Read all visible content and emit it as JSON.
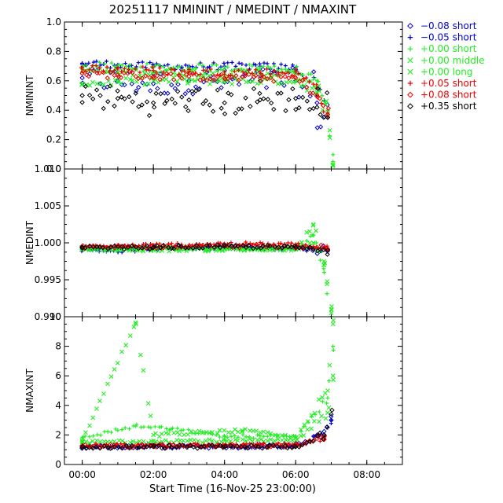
{
  "title": "20251117  NMININT  /  NMEDINT  /  NMAXINT",
  "xlabel": "Start Time (16-Nov-25 23:00:00)",
  "x_ticks": [
    "00:00",
    "02:00",
    "04:00",
    "06:00",
    "08:00"
  ],
  "legend": [
    {
      "symbol": "diamond",
      "color": "#0000cc",
      "offset": "−0.08",
      "type": "short"
    },
    {
      "symbol": "plus",
      "color": "#0000cc",
      "offset": "−0.05",
      "type": "short"
    },
    {
      "symbol": "plus",
      "color": "#22ee22",
      "offset": "+0.00",
      "type": "short"
    },
    {
      "symbol": "cross",
      "color": "#22ee22",
      "offset": "+0.00",
      "type": "middle"
    },
    {
      "symbol": "cross",
      "color": "#22ee22",
      "offset": "+0.00",
      "type": "long"
    },
    {
      "symbol": "plus",
      "color": "#ee0000",
      "offset": "+0.05",
      "type": "short"
    },
    {
      "symbol": "diamond",
      "color": "#ee0000",
      "offset": "+0.08",
      "type": "short"
    },
    {
      "symbol": "diamond",
      "color": "#000000",
      "offset": "+0.35",
      "type": "short"
    }
  ],
  "chart_data": [
    {
      "type": "scatter",
      "ylabel": "NMININT",
      "xlim": [
        -0.5,
        9.0
      ],
      "ylim": [
        0.0,
        1.0
      ],
      "y_ticks": [
        "0.0",
        "0.2",
        "0.4",
        "0.6",
        "0.8",
        "1.0"
      ],
      "series": [
        {
          "name": "−0.08 short",
          "x": [
            0.0,
            1.0,
            2.0,
            3.0,
            4.0,
            5.0,
            6.0,
            6.6,
            6.9
          ],
          "y": [
            0.62,
            0.6,
            0.58,
            0.6,
            0.59,
            0.6,
            0.6,
            0.45,
            0.35
          ]
        },
        {
          "name": "−0.05 short",
          "x": [
            0.0,
            1.0,
            2.0,
            3.0,
            4.0,
            5.0,
            6.0,
            6.6,
            6.9
          ],
          "y": [
            0.72,
            0.71,
            0.7,
            0.7,
            0.7,
            0.7,
            0.69,
            0.55,
            0.4
          ]
        },
        {
          "name": "+0.00 short",
          "x": [
            0.0,
            1.0,
            2.0,
            3.0,
            4.0,
            5.0,
            6.0,
            6.6,
            6.9,
            7.05
          ],
          "y": [
            0.7,
            0.7,
            0.69,
            0.69,
            0.69,
            0.69,
            0.68,
            0.6,
            0.4,
            0.05
          ]
        },
        {
          "name": "+0.00 middle",
          "x": [
            0.0,
            1.0,
            2.0,
            3.0,
            4.0,
            5.0,
            6.0,
            6.6,
            6.9,
            7.05
          ],
          "y": [
            0.67,
            0.66,
            0.66,
            0.66,
            0.65,
            0.65,
            0.65,
            0.55,
            0.38,
            0.03
          ]
        },
        {
          "name": "+0.00 long",
          "x": [
            0.0,
            1.0,
            2.0,
            3.0,
            4.0,
            5.0,
            6.0,
            6.6,
            6.9,
            7.05
          ],
          "y": [
            0.58,
            0.59,
            0.6,
            0.6,
            0.6,
            0.6,
            0.6,
            0.52,
            0.36,
            0.02
          ]
        },
        {
          "name": "+0.05 short",
          "x": [
            0.0,
            1.0,
            2.0,
            3.0,
            4.0,
            5.0,
            6.0,
            6.6,
            6.9
          ],
          "y": [
            0.69,
            0.68,
            0.67,
            0.66,
            0.66,
            0.66,
            0.66,
            0.55,
            0.38
          ]
        },
        {
          "name": "+0.08 short",
          "x": [
            0.0,
            1.0,
            2.0,
            3.0,
            4.0,
            5.0,
            6.0,
            6.6,
            6.9
          ],
          "y": [
            0.65,
            0.64,
            0.63,
            0.63,
            0.62,
            0.62,
            0.62,
            0.5,
            0.37
          ]
        },
        {
          "name": "+0.35 short",
          "x": [
            0.0,
            1.0,
            2.0,
            3.0,
            4.0,
            5.0,
            6.0,
            6.6,
            6.9
          ],
          "y": [
            0.5,
            0.48,
            0.45,
            0.47,
            0.45,
            0.47,
            0.48,
            0.42,
            0.35
          ]
        }
      ]
    },
    {
      "type": "scatter",
      "ylabel": "NMEDINT",
      "xlim": [
        -0.5,
        9.0
      ],
      "ylim": [
        0.99,
        1.01
      ],
      "y_ticks": [
        "0.990",
        "0.995",
        "1.000",
        "1.005",
        "1.010"
      ],
      "series": [
        {
          "name": "−0.08 short",
          "x": [
            0.0,
            2.0,
            4.0,
            6.0,
            6.9
          ],
          "y": [
            0.9993,
            0.9994,
            0.9995,
            0.9994,
            0.999
          ]
        },
        {
          "name": "−0.05 short",
          "x": [
            0.0,
            1.0,
            2.0,
            4.0,
            6.0,
            6.9
          ],
          "y": [
            0.9991,
            0.9989,
            0.9992,
            0.9993,
            0.9993,
            0.9988
          ]
        },
        {
          "name": "+0.00 short",
          "x": [
            0.0,
            2.0,
            4.0,
            6.0,
            6.5,
            6.8,
            7.0
          ],
          "y": [
            0.9993,
            0.9993,
            0.9993,
            0.9993,
            1.001,
            0.996,
            0.99
          ]
        },
        {
          "name": "+0.00 middle",
          "x": [
            0.0,
            2.0,
            4.0,
            6.0,
            6.5,
            6.8,
            7.0
          ],
          "y": [
            0.9992,
            0.9992,
            0.9992,
            0.9992,
            1.0025,
            0.997,
            0.991
          ]
        },
        {
          "name": "+0.00 long",
          "x": [
            0.0,
            2.0,
            4.0,
            6.0,
            6.5,
            6.8,
            7.0
          ],
          "y": [
            0.9991,
            0.9991,
            0.9991,
            0.9991,
            1.0,
            0.9975,
            0.9905
          ]
        },
        {
          "name": "+0.05 short",
          "x": [
            0.0,
            2.0,
            4.0,
            6.0,
            6.9
          ],
          "y": [
            0.9995,
            0.9997,
            0.9999,
            0.9998,
            0.9992
          ]
        },
        {
          "name": "+0.08 short",
          "x": [
            0.0,
            2.0,
            4.0,
            6.0,
            6.9
          ],
          "y": [
            0.9994,
            0.9995,
            0.9996,
            0.9995,
            0.9991
          ]
        },
        {
          "name": "+0.35 short",
          "x": [
            0.0,
            2.0,
            4.0,
            6.0,
            6.9
          ],
          "y": [
            0.9993,
            0.9994,
            0.9995,
            0.9994,
            0.999
          ]
        }
      ]
    },
    {
      "type": "scatter",
      "ylabel": "NMAXINT",
      "xlim": [
        -0.5,
        9.0
      ],
      "ylim": [
        0,
        10
      ],
      "y_ticks": [
        "0",
        "2",
        "4",
        "6",
        "8",
        "10"
      ],
      "series": [
        {
          "name": "−0.08 short",
          "x": [
            0.0,
            2.0,
            4.0,
            6.0,
            6.8,
            7.0
          ],
          "y": [
            1.2,
            1.25,
            1.2,
            1.3,
            2.0,
            3.0
          ]
        },
        {
          "name": "−0.05 short",
          "x": [
            0.0,
            2.0,
            4.0,
            6.0,
            6.8,
            7.0
          ],
          "y": [
            1.2,
            1.2,
            1.2,
            1.25,
            1.9,
            3.0
          ]
        },
        {
          "name": "+0.00 short",
          "x": [
            0.0,
            1.5,
            2.5,
            4.0,
            6.0,
            6.9,
            7.05
          ],
          "y": [
            1.8,
            2.6,
            2.4,
            1.9,
            1.9,
            4.5,
            8.0
          ]
        },
        {
          "name": "+0.00 middle",
          "x": [
            0.0,
            1.5,
            2.0,
            4.5,
            6.0,
            6.9,
            7.05
          ],
          "y": [
            1.6,
            9.6,
            2.0,
            2.3,
            1.8,
            5.0,
            9.5
          ]
        },
        {
          "name": "+0.00 long",
          "x": [
            0.0,
            2.0,
            4.0,
            6.0,
            6.9,
            7.05
          ],
          "y": [
            1.5,
            1.6,
            1.6,
            1.6,
            3.5,
            6.0
          ]
        },
        {
          "name": "+0.05 short",
          "x": [
            0.0,
            2.0,
            4.0,
            6.0,
            6.8
          ],
          "y": [
            1.3,
            1.3,
            1.3,
            1.35,
            1.8
          ]
        },
        {
          "name": "+0.08 short",
          "x": [
            0.0,
            2.0,
            4.0,
            6.0,
            6.8
          ],
          "y": [
            1.25,
            1.25,
            1.25,
            1.3,
            1.7
          ]
        },
        {
          "name": "+0.35 short",
          "x": [
            0.0,
            2.0,
            4.0,
            6.0,
            6.8,
            7.0
          ],
          "y": [
            1.15,
            1.2,
            1.2,
            1.2,
            2.0,
            3.4
          ]
        }
      ]
    }
  ]
}
